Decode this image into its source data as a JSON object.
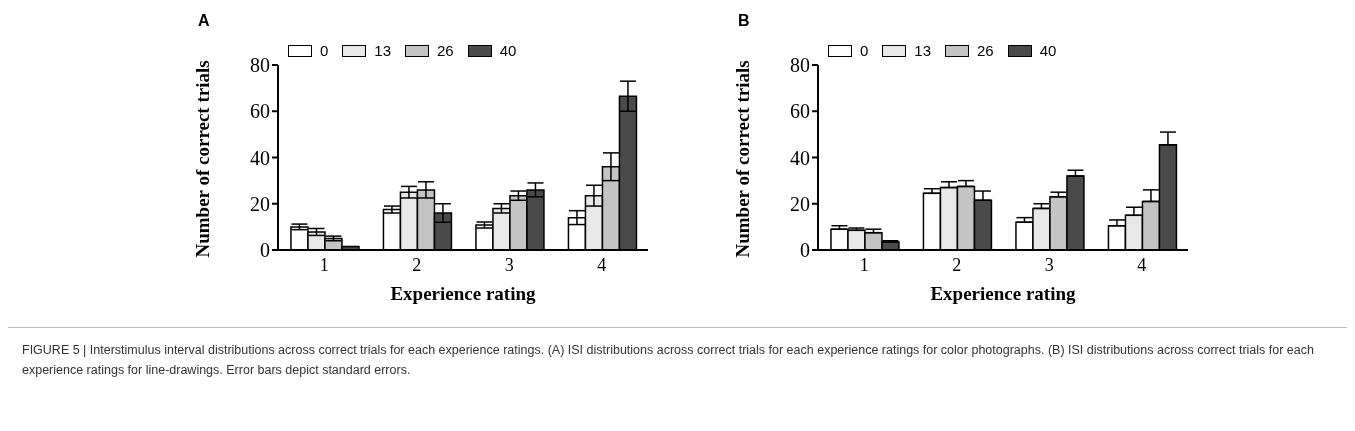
{
  "chart_data": [
    {
      "type": "bar",
      "title": "A",
      "xlabel": "Experience rating",
      "ylabel": "Number of correct trials",
      "categories": [
        "1",
        "2",
        "3",
        "4"
      ],
      "ylim": [
        0,
        80
      ],
      "yticks": [
        0,
        20,
        40,
        60,
        80
      ],
      "legend": "top left",
      "series": [
        {
          "name": "0",
          "color": "#ffffff",
          "values": [
            10,
            17.5,
            10.8,
            14
          ],
          "errors": [
            1.2,
            1.5,
            1.3,
            3
          ]
        },
        {
          "name": "13",
          "color": "#e8e8e8",
          "values": [
            7.8,
            25,
            18,
            23.5
          ],
          "errors": [
            1.5,
            2.5,
            2,
            4.5
          ]
        },
        {
          "name": "26",
          "color": "#c4c4c4",
          "values": [
            5,
            26,
            23.5,
            36
          ],
          "errors": [
            1,
            3.5,
            2,
            6
          ]
        },
        {
          "name": "40",
          "color": "#4a4a4a",
          "values": [
            1.5,
            16,
            26,
            66.5
          ],
          "errors": [
            null,
            4,
            3,
            6.5
          ]
        }
      ],
      "annotations": [
        "FIGURE 5 | Interstimulus interval distributions across correct trials for each experience ratings. (A) ISI distributions across correct trials for each experience ratings for color photographs. (B) ISI distributions across correct trials for each experience ratings for line-drawings. Error bars depict standard errors."
      ]
    },
    {
      "type": "bar",
      "title": "B",
      "xlabel": "Experience rating",
      "ylabel": "Number of correct trials",
      "categories": [
        "1",
        "2",
        "3",
        "4"
      ],
      "ylim": [
        0,
        80
      ],
      "yticks": [
        0,
        20,
        40,
        60,
        80
      ],
      "legend": "top left",
      "series": [
        {
          "name": "0",
          "color": "#ffffff",
          "values": [
            9,
            24.5,
            12,
            10.5
          ],
          "errors": [
            [
              9,
              10.5
            ],
            [
              24.5,
              26.5
            ],
            [
              12,
              14
            ],
            [
              10.5,
              13
            ]
          ]
        },
        {
          "name": "13",
          "color": "#e8e8e8",
          "values": [
            8.5,
            27,
            18,
            15
          ],
          "errors": [
            [
              8.5,
              9.5
            ],
            [
              27,
              29.5
            ],
            [
              18,
              20
            ],
            [
              15,
              18.5
            ]
          ]
        },
        {
          "name": "26",
          "color": "#c4c4c4",
          "values": [
            7.5,
            27.5,
            23,
            21
          ],
          "errors": [
            [
              7.5,
              9
            ],
            [
              27.5,
              30
            ],
            [
              23,
              25
            ],
            [
              21,
              26
            ]
          ]
        },
        {
          "name": "40",
          "color": "#4a4a4a",
          "values": [
            3.5,
            21.5,
            32,
            45.5
          ],
          "errors": [
            [
              3.5,
              4
            ],
            [
              21.5,
              25.5
            ],
            [
              32,
              34.5
            ],
            [
              45.5,
              51
            ]
          ]
        }
      ]
    }
  ]
}
